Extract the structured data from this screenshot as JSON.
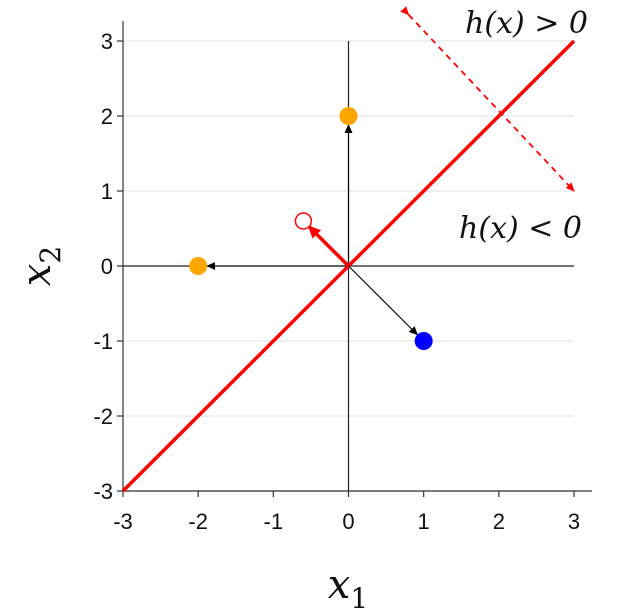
{
  "chart_data": {
    "type": "scatter",
    "xlabel": "x",
    "xlabel_sub": "1",
    "ylabel": "x",
    "ylabel_sub": "2",
    "xlim": [
      -3,
      3
    ],
    "ylim": [
      -3,
      3
    ],
    "xticks": [
      "-3",
      "-2",
      "-1",
      "0",
      "1",
      "2",
      "3"
    ],
    "yticks": [
      "-3",
      "-2",
      "-1",
      "0",
      "1",
      "2",
      "3"
    ],
    "grid": "horizontal",
    "decision_line": {
      "from": [
        -3,
        -3
      ],
      "to": [
        3,
        3
      ],
      "color": "#ff0000"
    },
    "region_labels": [
      {
        "text": "h(x) > 0",
        "side": "upper-left"
      },
      {
        "text": "h(x) < 0",
        "side": "lower-right"
      }
    ],
    "normal_vector": {
      "from": [
        0,
        0
      ],
      "to": [
        -0.6,
        0.6
      ],
      "color": "#ff0000",
      "open_marker": true
    },
    "points": [
      {
        "x": 0,
        "y": 2,
        "color": "#ffa500"
      },
      {
        "x": -2,
        "y": 0,
        "color": "#ffa500"
      },
      {
        "x": 1,
        "y": -1,
        "color": "#0000ff"
      }
    ],
    "region_arrow": {
      "from": [
        0.8,
        3.35
      ],
      "to": [
        3.0,
        1.0
      ],
      "color": "#ff0000",
      "dashed": true
    }
  }
}
